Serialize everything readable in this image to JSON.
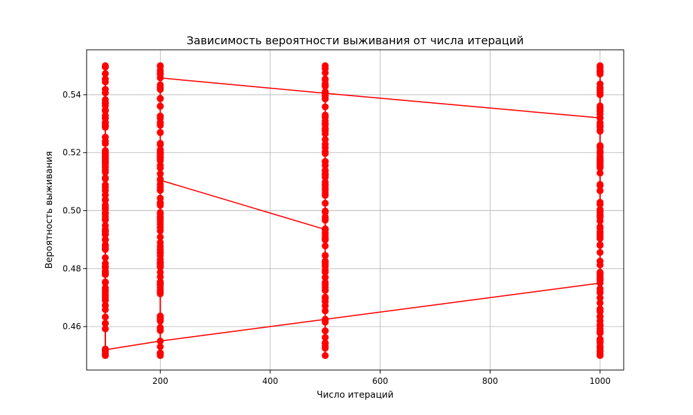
{
  "chart_data": {
    "type": "line",
    "title": "Зависимость вероятности выживания от числа итераций",
    "xlabel": "Число итераций",
    "ylabel": "Вероятность выживания",
    "xlim": [
      66,
      1043
    ],
    "ylim": [
      0.445,
      0.5555
    ],
    "xticks": [
      200,
      400,
      600,
      800,
      1000
    ],
    "yticks": [
      0.46,
      0.48,
      0.5,
      0.52,
      0.54
    ],
    "ytick_labels": [
      "0.46",
      "0.48",
      "0.50",
      "0.52",
      "0.54"
    ],
    "grid": true,
    "series_color": "#ff0000",
    "x_groups": [
      100,
      200,
      500,
      1000
    ],
    "points_per_group": 100,
    "y_range_per_group": [
      0.45,
      0.55
    ],
    "highlighted_segments": [
      {
        "x": [
          100,
          200,
          500,
          1000
        ],
        "y": [
          0.452,
          0.455,
          0.4625,
          0.475
        ]
      },
      {
        "x": [
          200,
          500
        ],
        "y": [
          0.5105,
          0.4935
        ]
      },
      {
        "x": [
          200,
          500,
          1000
        ],
        "y": [
          0.5458,
          0.5405,
          0.532
        ]
      }
    ]
  }
}
